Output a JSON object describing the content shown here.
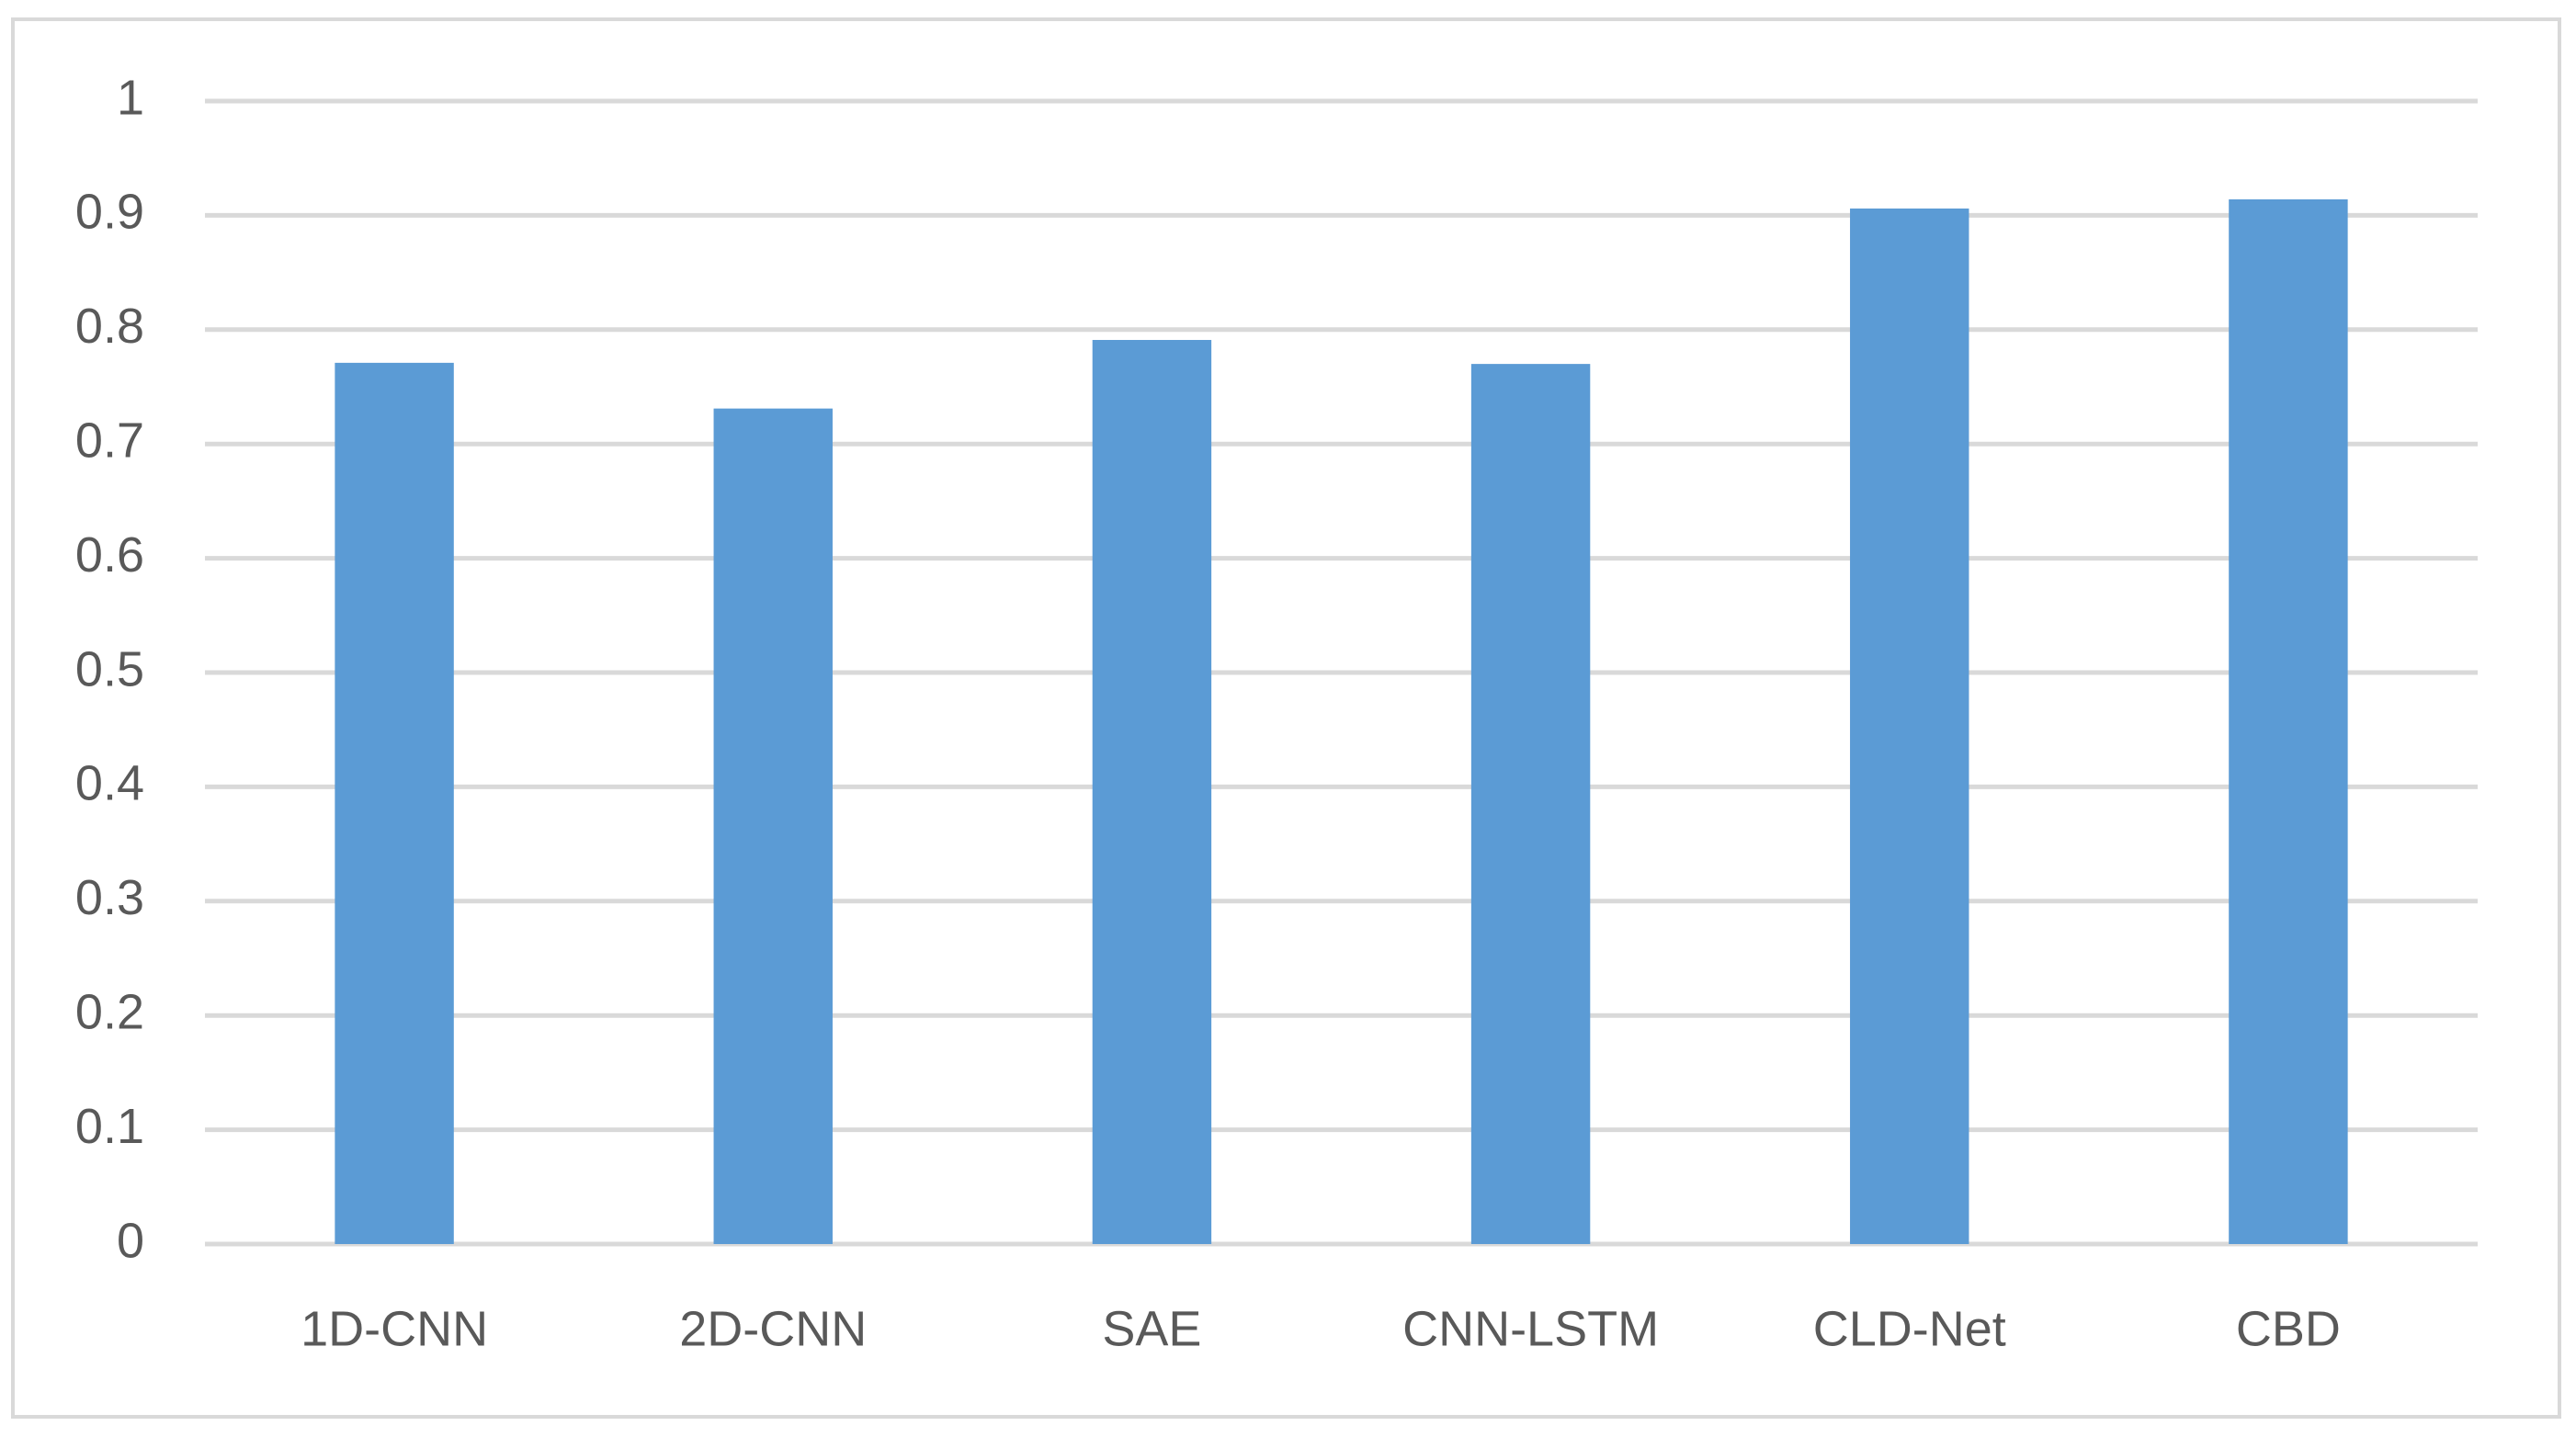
{
  "chart_data": {
    "type": "bar",
    "categories": [
      "1D-CNN",
      "2D-CNN",
      "SAE",
      "CNN-LSTM",
      "CLD-Net",
      "CBD"
    ],
    "values": [
      0.771,
      0.731,
      0.791,
      0.77,
      0.906,
      0.914
    ],
    "color": "#5b9bd5",
    "ylim": [
      0,
      1
    ],
    "yticks": [
      0,
      0.1,
      0.2,
      0.3,
      0.4,
      0.5,
      0.6,
      0.7,
      0.8,
      0.9,
      1
    ],
    "grid": true
  }
}
